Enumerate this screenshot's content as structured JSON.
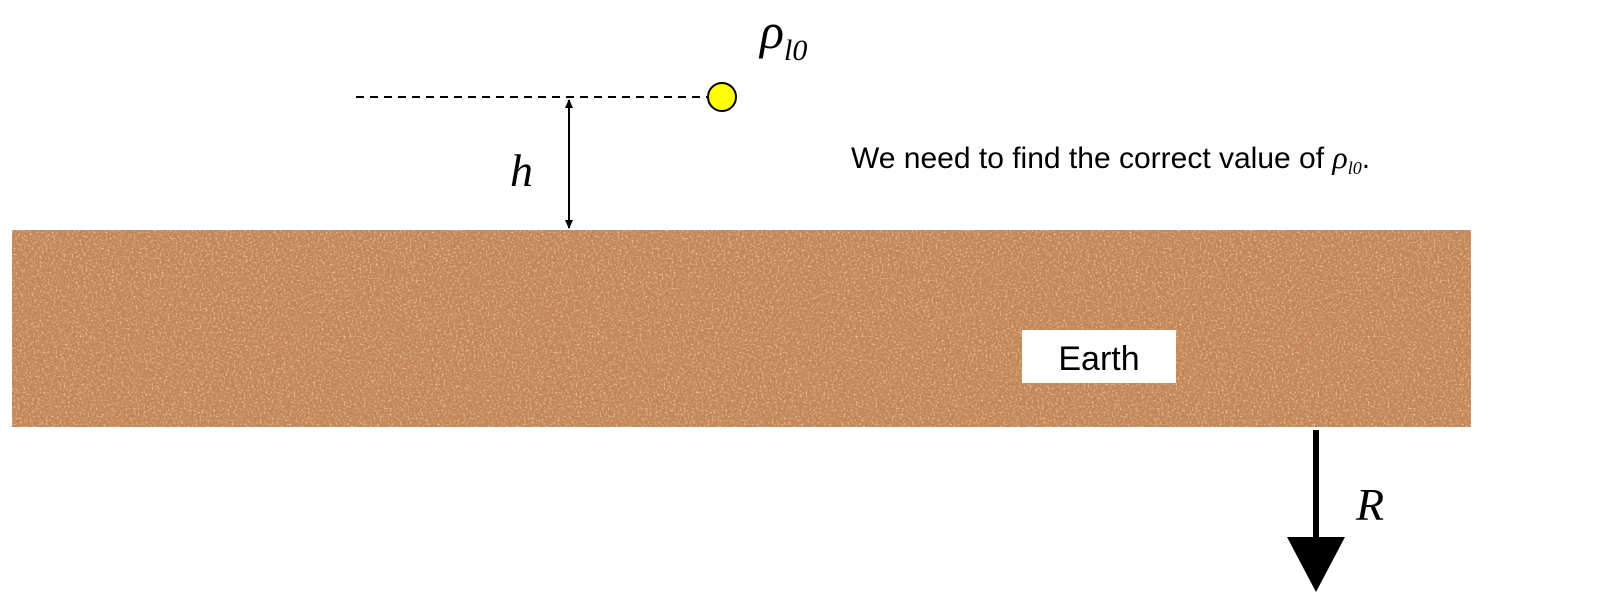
{
  "point_label": {
    "symbol": "ρ",
    "subscript": "l0"
  },
  "height_label": "h",
  "note": {
    "text": "We need to find the correct value of ",
    "symbol": "ρ",
    "subscript": "l0",
    "end": "."
  },
  "earth_label": "Earth",
  "radius_label": "R"
}
